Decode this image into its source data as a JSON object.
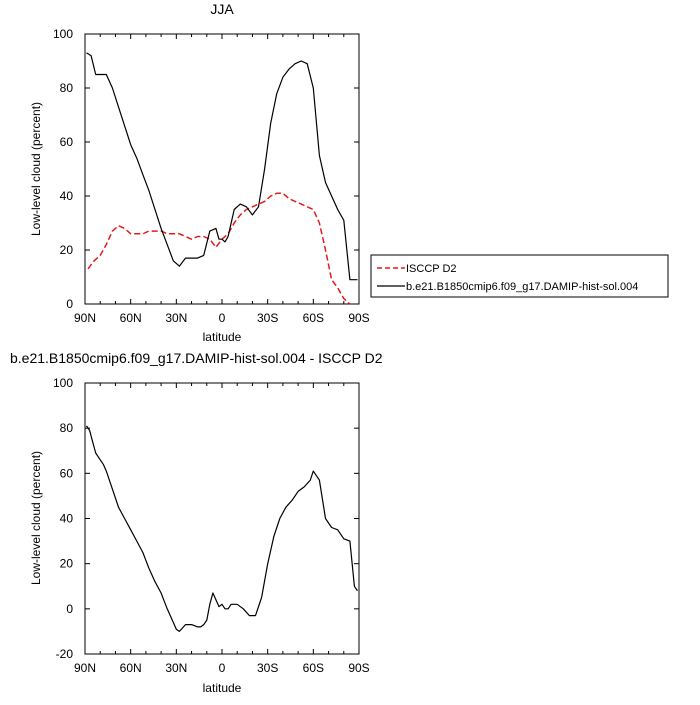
{
  "chart_data": [
    {
      "type": "line",
      "title": "JJA",
      "xlabel": "latitude",
      "ylabel": "Low-level cloud (percent)",
      "xlim": [
        90,
        -90
      ],
      "ylim": [
        0,
        100
      ],
      "x_ticks": [
        90,
        60,
        30,
        0,
        -30,
        -60,
        -90
      ],
      "x_tick_labels": [
        "90N",
        "60N",
        "30N",
        "0",
        "30S",
        "60S",
        "90S"
      ],
      "y_ticks": [
        0,
        20,
        40,
        60,
        80,
        100
      ],
      "y_tick_labels": [
        "0",
        "20",
        "40",
        "60",
        "80",
        "100"
      ],
      "legend_position": "right",
      "series": [
        {
          "name": "ISCCP D2",
          "color": "#e31a1c",
          "style": "dashed",
          "x": [
            88,
            84,
            80,
            76,
            72,
            68,
            64,
            60,
            56,
            52,
            48,
            44,
            40,
            36,
            32,
            28,
            24,
            20,
            16,
            12,
            8,
            4,
            0,
            -4,
            -8,
            -12,
            -16,
            -20,
            -24,
            -28,
            -32,
            -36,
            -40,
            -44,
            -48,
            -52,
            -56,
            -60,
            -64,
            -68,
            -72,
            -76,
            -80,
            -84
          ],
          "values": [
            13,
            16,
            18,
            22,
            27,
            29,
            28,
            26,
            26,
            26,
            27,
            27,
            27,
            26,
            26,
            26,
            25,
            24,
            25,
            25,
            24,
            21,
            24,
            26,
            30,
            33,
            35,
            36,
            37,
            38,
            40,
            41,
            41,
            39,
            38,
            37,
            36,
            35,
            30,
            20,
            9,
            6,
            2,
            0
          ]
        },
        {
          "name": "b.e21.B1850cmip6.f09_g17.DAMIP-hist-sol.004",
          "color": "#000000",
          "style": "solid",
          "x": [
            89,
            86,
            83,
            80,
            76,
            72,
            68,
            64,
            60,
            56,
            52,
            48,
            44,
            40,
            36,
            32,
            28,
            24,
            20,
            16,
            12,
            8,
            4,
            2,
            0,
            -2,
            -4,
            -8,
            -12,
            -16,
            -20,
            -24,
            -28,
            -32,
            -36,
            -40,
            -44,
            -48,
            -52,
            -56,
            -60,
            -64,
            -68,
            -72,
            -76,
            -80,
            -84,
            -87,
            -89
          ],
          "values": [
            93,
            92,
            85,
            85,
            85,
            80,
            73,
            66,
            59,
            54,
            48,
            42,
            35,
            28,
            22,
            16,
            14,
            17,
            17,
            17,
            18,
            27,
            28,
            24,
            24,
            23,
            25,
            35,
            37,
            36,
            33,
            36,
            50,
            67,
            78,
            84,
            87,
            89,
            90,
            89,
            80,
            55,
            45,
            40,
            35,
            31,
            9,
            9,
            9
          ]
        }
      ]
    },
    {
      "type": "line",
      "title": "b.e21.B1850cmip6.f09_g17.DAMIP-hist-sol.004 - ISCCP D2",
      "xlabel": "latitude",
      "ylabel": "Low-level cloud (percent)",
      "xlim": [
        90,
        -90
      ],
      "ylim": [
        -20,
        100
      ],
      "x_ticks": [
        90,
        60,
        30,
        0,
        -30,
        -60,
        -90
      ],
      "x_tick_labels": [
        "90N",
        "60N",
        "30N",
        "0",
        "30S",
        "60S",
        "90S"
      ],
      "y_ticks": [
        -20,
        0,
        20,
        40,
        60,
        80,
        100
      ],
      "y_tick_labels": [
        "-20",
        "0",
        "20",
        "40",
        "60",
        "80",
        "100"
      ],
      "series": [
        {
          "name": "",
          "color": "#000000",
          "style": "solid",
          "x": [
            89,
            87,
            85,
            83,
            80,
            78,
            76,
            72,
            68,
            64,
            60,
            56,
            52,
            48,
            44,
            40,
            36,
            32,
            30,
            28,
            24,
            20,
            16,
            14,
            12,
            10,
            8,
            6,
            4,
            2,
            0,
            -2,
            -4,
            -6,
            -10,
            -14,
            -18,
            -22,
            -26,
            -30,
            -34,
            -38,
            -42,
            -46,
            -50,
            -54,
            -58,
            -60,
            -64,
            -68,
            -72,
            -76,
            -80,
            -84,
            -87,
            -89
          ],
          "values": [
            81,
            79,
            74,
            69,
            66,
            64,
            61,
            53,
            45,
            40,
            35,
            30,
            25,
            18,
            12,
            7,
            0,
            -6,
            -9,
            -10,
            -7,
            -7,
            -8,
            -8,
            -7,
            -5,
            2,
            7,
            4,
            1,
            2,
            0,
            0,
            2,
            2,
            0,
            -3,
            -3,
            5,
            20,
            32,
            40,
            45,
            48,
            52,
            54,
            57,
            61,
            57,
            40,
            36,
            35,
            31,
            30,
            10,
            8
          ]
        }
      ]
    }
  ]
}
